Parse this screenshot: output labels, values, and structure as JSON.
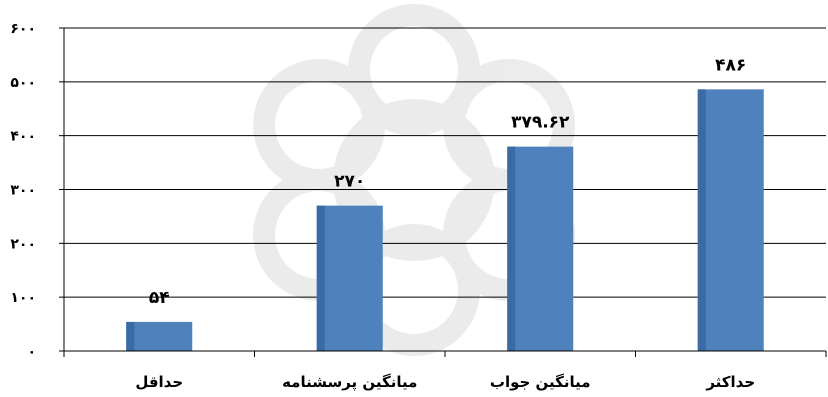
{
  "chart_data": {
    "type": "bar",
    "categories": [
      "حداقل",
      "میانگین پرسشنامه",
      "میانگین جواب",
      "حداکثر"
    ],
    "values": [
      54,
      270,
      379.62,
      486
    ],
    "data_labels": [
      "۵۴",
      "۲۷۰",
      "۳۷۹.۶۲",
      "۴۸۶"
    ],
    "y_ticks": [
      {
        "value": 0,
        "label": "۰"
      },
      {
        "value": 100,
        "label": "۱۰۰"
      },
      {
        "value": 200,
        "label": "۲۰۰"
      },
      {
        "value": 300,
        "label": "۳۰۰"
      },
      {
        "value": 400,
        "label": "۴۰۰"
      },
      {
        "value": 500,
        "label": "۵۰۰"
      },
      {
        "value": 600,
        "label": "۶۰۰"
      }
    ],
    "ylim": [
      0,
      600
    ],
    "grid": true,
    "legend": "none",
    "bar_color": "#4F81BD",
    "grid_color": "#000000",
    "watermark": "decorative-rosette-logo"
  }
}
